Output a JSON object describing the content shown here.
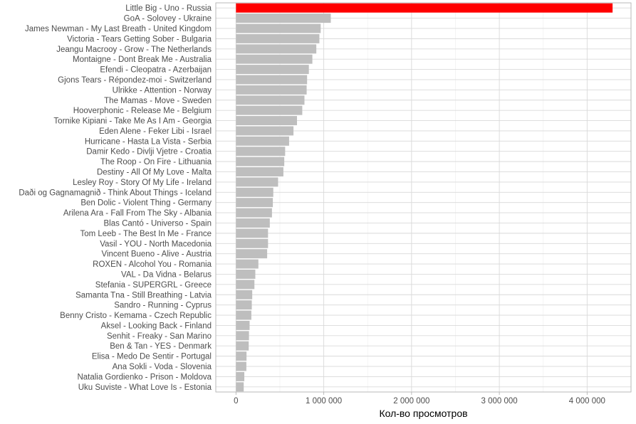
{
  "chart_data": {
    "type": "bar",
    "orientation": "horizontal",
    "xlabel": "Кол-во просмотров",
    "ylabel": "",
    "title": "",
    "xlim": [
      -230000,
      4500000
    ],
    "x_ticks": [
      0,
      1000000,
      2000000,
      3000000,
      4000000
    ],
    "x_tick_labels": [
      "0",
      "1 000 000",
      "2 000 000",
      "3 000 000",
      "4 000 000"
    ],
    "grid": true,
    "legend": "none",
    "colors": {
      "highlight": "#ff0000",
      "default": "#bebebe"
    },
    "categories": [
      "Little Big - Uno - Russia",
      "GoA - Solovey - Ukraine",
      "James Newman - My Last Breath - United Kingdom",
      "Victoria - Tears Getting Sober - Bulgaria",
      "Jeangu Macrooy - Grow - The Netherlands",
      "Montaigne - Dont Break Me - Australia",
      "Efendi - Cleopatra - Azerbaijan",
      "Gjons Tears - Répondez-moi - Switzerland",
      "Ulrikke - Attention - Norway",
      "The Mamas - Move - Sweden",
      "Hooverphonic - Release Me - Belgium",
      "Tornike Kipiani - Take Me As I Am - Georgia",
      "Eden Alene - Feker Libi - Israel",
      "Hurricane - Hasta La Vista - Serbia",
      "Damir Kedo - Divlji Vjetre - Croatia",
      "The Roop - On Fire - Lithuania",
      "Destiny - All Of My Love - Malta",
      "Lesley Roy - Story Of My Life - Ireland",
      "Daði og Gagnamagnið - Think About Things - Iceland",
      "Ben Dolic - Violent Thing - Germany",
      "Arilena Ara - Fall From The Sky - Albania",
      "Blas Cantó - Universo - Spain",
      "Tom Leeb - The Best In Me - France",
      "Vasil - YOU - North Macedonia",
      "Vincent Bueno - Alive - Austria",
      "ROXEN - Alcohol You - Romania",
      "VAL - Da Vidna - Belarus",
      "Stefania - SUPERGRL - Greece",
      "Samanta Tna - Still Breathing - Latvia",
      "Sandro - Running - Cyprus",
      "Benny Cristo - Kemama - Czech Republic",
      "Aksel - Looking Back - Finland",
      "Senhit - Freaky - San Marino",
      "Ben & Tan - YES - Denmark",
      "Elisa - Medo De Sentir - Portugal",
      "Ana Sokli - Voda - Slovenia",
      "Natalia Gordienko - Prison - Moldova",
      "Uku Suviste - What Love Is - Estonia"
    ],
    "values": [
      4290000,
      1080000,
      965000,
      950000,
      915000,
      870000,
      830000,
      810000,
      805000,
      780000,
      755000,
      695000,
      655000,
      605000,
      560000,
      550000,
      540000,
      480000,
      425000,
      420000,
      410000,
      385000,
      365000,
      365000,
      355000,
      255000,
      220000,
      210000,
      185000,
      180000,
      175000,
      155000,
      148000,
      145000,
      120000,
      118000,
      95000,
      88000
    ],
    "highlight_index": 0
  }
}
